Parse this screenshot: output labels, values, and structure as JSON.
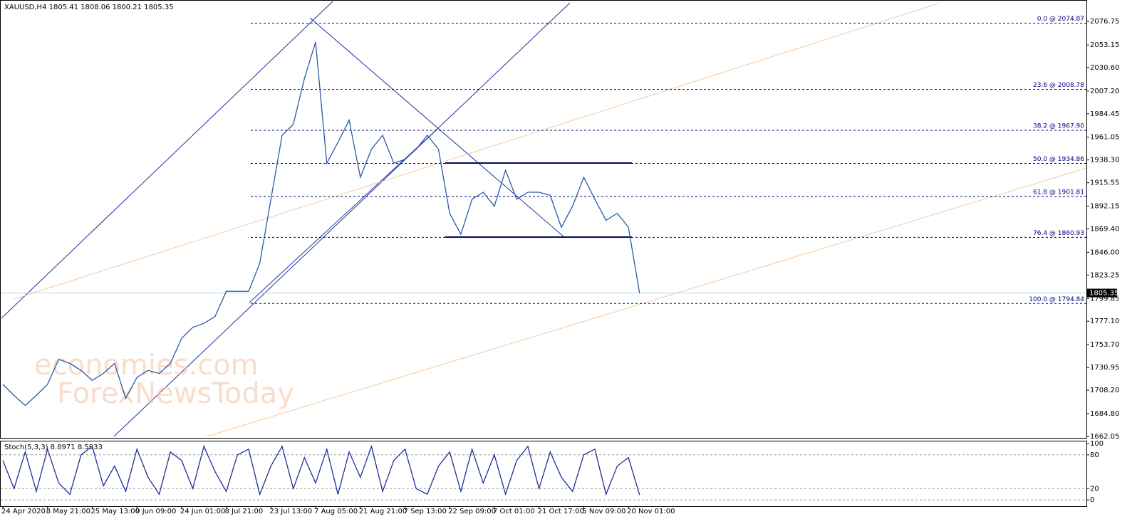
{
  "chart_data": [
    {
      "type": "line",
      "title": "XAUUSD,H4  1805.41 1808.06 1800.21 1805.35",
      "color": "#2a5aa8",
      "values": [
        1714,
        1703,
        1693,
        1703,
        1714,
        1739,
        1735,
        1728,
        1718,
        1725,
        1735,
        1700,
        1721,
        1728,
        1725,
        1735,
        1760,
        1771,
        1775,
        1782,
        1807,
        1807,
        1807,
        1835,
        1899,
        1963,
        1974,
        2020,
        2056,
        1935,
        1956,
        1978,
        1921,
        1949,
        1963,
        1935,
        1939,
        1949,
        1963,
        1949,
        1885,
        1864,
        1899,
        1906,
        1892,
        1928,
        1899,
        1906,
        1906,
        1903,
        1871,
        1892,
        1921,
        1899,
        1878,
        1885,
        1871,
        1805
      ],
      "ylim": [
        1660.6,
        2097.4
      ],
      "yticks": [
        2076.75,
        2053.15,
        {
          "value": 2030.6,
          "label": "2030.60"
        },
        {
          "value": 2007.2,
          "label": "2007.20"
        },
        1984.45,
        1961.05,
        {
          "value": 1938.3,
          "label": "1938.30"
        },
        1915.55,
        1892.15,
        {
          "value": 1869.4,
          "label": "1869.40"
        },
        {
          "value": 1846,
          "label": "1846.00"
        },
        1823.25,
        1799.85,
        {
          "value": 1777.1,
          "label": "1777.10"
        },
        {
          "value": 1753.7,
          "label": "1753.70"
        },
        1730.95,
        {
          "value": 1708.2,
          "label": "1708.20"
        },
        {
          "value": 1684.8,
          "label": "1684.80"
        },
        1662.05
      ],
      "current_price": {
        "value": 1805.35,
        "label": "1805.35"
      },
      "fib_levels": [
        {
          "value": 2074.87,
          "label": "0.0 @ 2074.87"
        },
        {
          "value": 2008.78,
          "label": "23.6 @ 2008.78"
        },
        {
          "value": 1967.9,
          "label": "38.2 @ 1967.90"
        },
        {
          "value": 1934.86,
          "label": "50.0 @ 1934.86"
        },
        {
          "value": 1901.81,
          "label": "61.8 @ 1901.81"
        },
        {
          "value": 1860.93,
          "label": "76.4 @ 1860.93"
        },
        {
          "value": 1794.84,
          "label": "100.0 @ 1794.84"
        }
      ],
      "watermark": [
        "economies.com",
        "ForexNewsToday"
      ],
      "grid": false
    },
    {
      "type": "line",
      "title": "Stoch(5,3,3) 8.8971 8.5933",
      "color": "#1c2f9a",
      "categories": [
        "24 Apr 2020",
        null,
        null,
        null,
        "8 May 21:00",
        null,
        null,
        null,
        "25 May 13:00",
        null,
        null,
        null,
        "9 Jun 09:00",
        null,
        null,
        null,
        "24 Jun 01:00",
        null,
        null,
        null,
        "8 Jul 21:00",
        null,
        null,
        null,
        "23 Jul 13:00",
        null,
        null,
        null,
        "7 Aug 05:00",
        null,
        null,
        null,
        "21 Aug 21:00",
        null,
        null,
        null,
        "7 Sep 13:00",
        null,
        null,
        null,
        "22 Sep 09:00",
        null,
        null,
        null,
        "7 Oct 01:00",
        null,
        null,
        null,
        "21 Oct 17:00",
        null,
        null,
        null,
        "5 Nov 09:00",
        null,
        null,
        null,
        "20 Nov 01:00",
        null
      ],
      "values": [
        70,
        20,
        85,
        15,
        90,
        30,
        10,
        80,
        95,
        25,
        60,
        15,
        90,
        40,
        10,
        85,
        70,
        20,
        95,
        50,
        15,
        80,
        90,
        10,
        60,
        95,
        20,
        75,
        30,
        90,
        10,
        85,
        40,
        95,
        15,
        70,
        90,
        20,
        10,
        60,
        85,
        15,
        90,
        30,
        80,
        10,
        70,
        95,
        20,
        85,
        40,
        15,
        80,
        90,
        10,
        60,
        75,
        9
      ],
      "ylim": [
        -11.25,
        105
      ],
      "yticks": [
        100,
        80,
        20,
        0
      ],
      "grid": true
    }
  ]
}
